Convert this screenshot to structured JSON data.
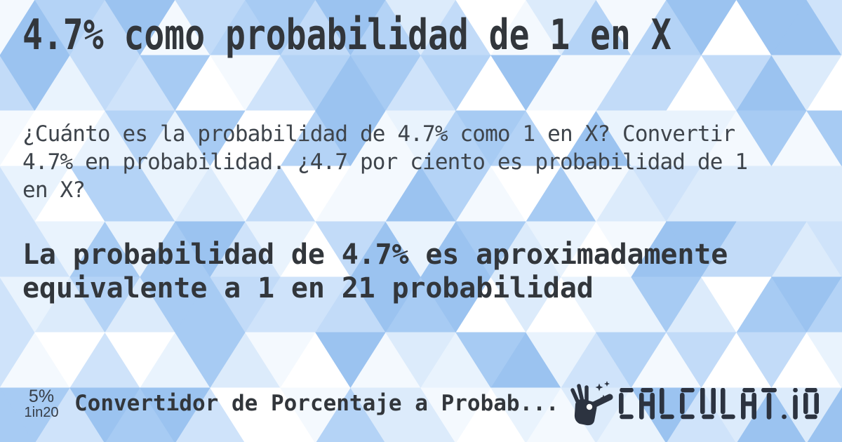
{
  "card": {
    "title": "4.7% como probabilidad de 1 en X",
    "description": "¿Cuánto es la probabilidad de 4.7% como 1 en X? Convertir 4.7% en probabilidad. ¿4.7 por ciento es probabilidad de 1 en X?",
    "answer": "La probabilidad de 4.7% es aproximadamente equivalente a 1 en 21 probabilidad"
  },
  "footer": {
    "badge_percent": "5%",
    "badge_ratio": "1in20",
    "calculator_name": "Convertidor de Porcentaje a Probab...",
    "brand": "CALCULAT.IO",
    "brand_icon": "magic-wand-hand-icon"
  },
  "theme": {
    "text_dark": "#32363b",
    "text_body": "#3e444b",
    "text_badge": "#353c46",
    "logo_color": "#2c3340",
    "background_palette": [
      "#ffffff",
      "#f4f9fe",
      "#e9f3fd",
      "#dcebfb",
      "#cfe3fa",
      "#c2dbf8",
      "#b4d3f6",
      "#a7cbf3",
      "#9bc3f0"
    ]
  }
}
